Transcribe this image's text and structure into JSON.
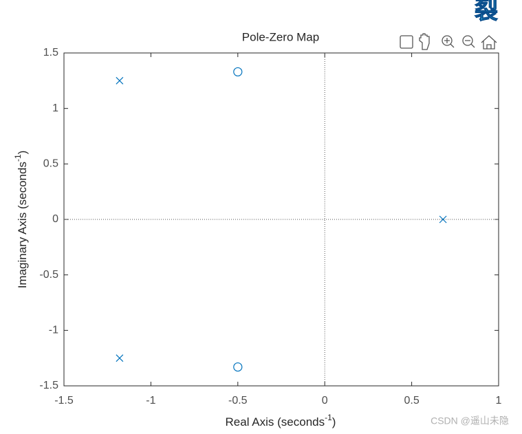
{
  "chart_data": {
    "type": "scatter",
    "title": "Pole-Zero Map",
    "xlabel": [
      "Real Axis (seconds",
      "-1",
      ")"
    ],
    "ylabel": [
      "Imaginary Axis (seconds",
      "-1",
      ")"
    ],
    "xlim": [
      -1.5,
      1
    ],
    "ylim": [
      -1.5,
      1.5
    ],
    "xticks": [
      -1.5,
      -1,
      -0.5,
      0,
      0.5,
      1
    ],
    "yticks": [
      -1.5,
      -1,
      -0.5,
      0,
      0.5,
      1,
      1.5
    ],
    "zero_lines": true,
    "series": [
      {
        "marker": "x",
        "color": "#0072bd",
        "x": [
          -1.18,
          -1.18,
          0.68
        ],
        "y": [
          1.25,
          -1.25,
          0
        ]
      },
      {
        "marker": "o",
        "color": "#0072bd",
        "x": [
          -0.5,
          -0.5
        ],
        "y": [
          1.33,
          -1.33
        ]
      }
    ]
  },
  "watermark": "CSDN @遥山未隐",
  "overlay_text": "裂"
}
